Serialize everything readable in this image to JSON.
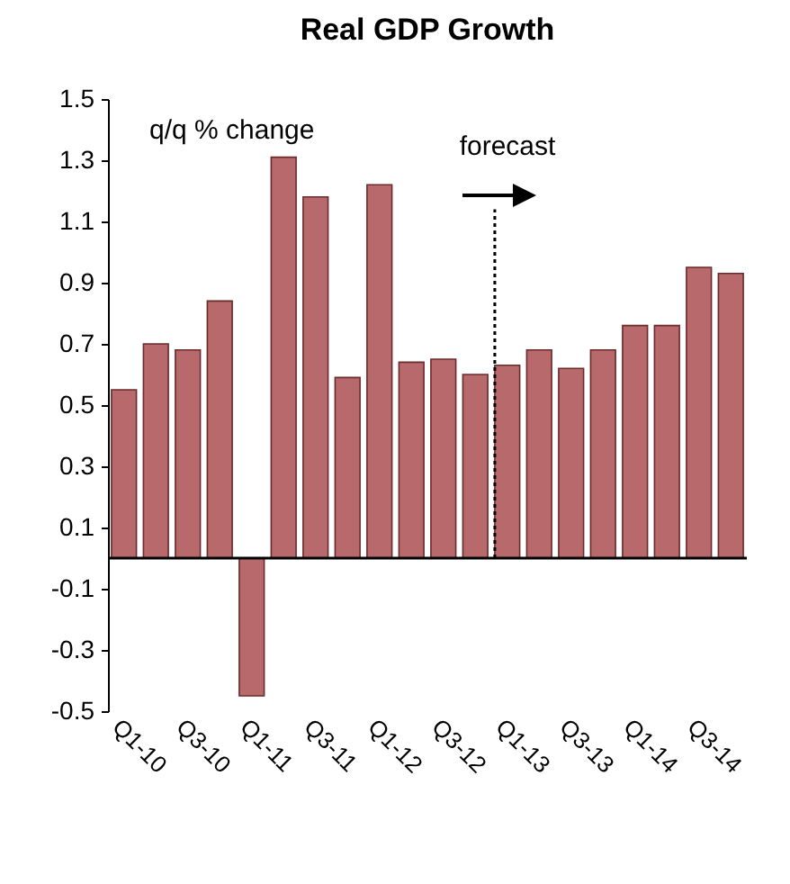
{
  "chart_data": {
    "type": "bar",
    "title": "Real GDP Growth",
    "categories": [
      "Q1-10",
      null,
      "Q3-10",
      null,
      "Q1-11",
      null,
      "Q3-11",
      null,
      "Q1-12",
      null,
      "Q3-12",
      null,
      "Q1-13",
      null,
      "Q3-13",
      null,
      "Q1-14",
      null,
      "Q3-14",
      null
    ],
    "values": [
      0.55,
      0.7,
      0.68,
      0.84,
      -0.45,
      1.31,
      1.18,
      0.59,
      1.22,
      0.64,
      0.65,
      0.6,
      0.63,
      0.68,
      0.62,
      0.68,
      0.76,
      0.76,
      0.95,
      0.93
    ],
    "color": "#b8696c",
    "ylim": [
      -0.5,
      1.5
    ],
    "yticks": [
      -0.5,
      -0.3,
      -0.1,
      0.1,
      0.3,
      0.5,
      0.7,
      0.9,
      1.1,
      1.3,
      1.5
    ],
    "annotations": [
      "q/q % change"
    ],
    "ref_lines": [
      {
        "axis": "y",
        "value": 0,
        "color": "#000000",
        "line_style": "solid"
      },
      {
        "axis": "x",
        "value": "Q1-13",
        "label": "forecast",
        "line_style": "dotted",
        "color": "#000000"
      }
    ]
  }
}
